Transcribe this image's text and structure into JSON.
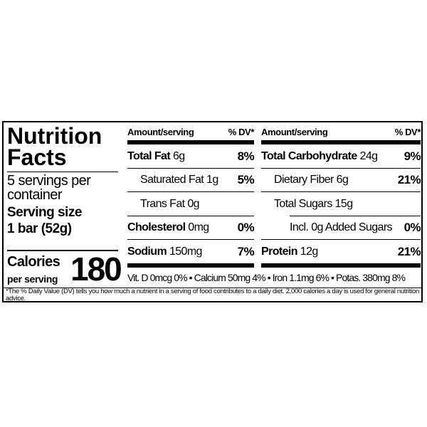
{
  "title_line1": "Nutrition",
  "title_line2": "Facts",
  "servings_line1": "5 servings per",
  "servings_line2": "container",
  "serving_size_label": "Serving size",
  "serving_size_value": "1 bar (52g)",
  "calories_label": "Calories",
  "calories_sub": "per serving",
  "calories_value": "180",
  "left_table": {
    "header_amount": "Amount/serving",
    "header_dv": "% DV*",
    "rows": [
      {
        "name": "Total Fat",
        "amount": "6g",
        "dv": "8%",
        "bold": true,
        "indent": 0
      },
      {
        "name": "Saturated Fat",
        "amount": "1g",
        "dv": "5%",
        "bold": false,
        "indent": 1
      },
      {
        "name": "Trans Fat",
        "amount": "0g",
        "dv": "",
        "bold": false,
        "indent": 1
      },
      {
        "name": "Cholesterol",
        "amount": "0mg",
        "dv": "0%",
        "bold": true,
        "indent": 0
      },
      {
        "name": "Sodium",
        "amount": "150mg",
        "dv": "7%",
        "bold": true,
        "indent": 0
      }
    ]
  },
  "right_table": {
    "header_amount": "Amount/serving",
    "header_dv": "% DV*",
    "rows": [
      {
        "name": "Total Carbohydrate",
        "amount": "24g",
        "dv": "9%",
        "bold": true,
        "indent": 0
      },
      {
        "name": "Dietary Fiber",
        "amount": "6g",
        "dv": "21%",
        "bold": false,
        "indent": 1
      },
      {
        "name": "Total Sugars",
        "amount": "15g",
        "dv": "",
        "bold": false,
        "indent": 1
      },
      {
        "name": "Incl. 0g Added Sugars",
        "amount": "",
        "dv": "0%",
        "bold": false,
        "indent": 2
      },
      {
        "name": "Protein",
        "amount": "12g",
        "dv": "21%",
        "bold": true,
        "indent": 0
      }
    ]
  },
  "vitamins": "Vit. D 0mcg 0% • Calcium 50mg 4% • Iron 1.1mg  6% • Potas. 380mg 8%",
  "footnote": "*The % Daily Value (DV) tells you how much a nutrient in a serving of food contributes to a daily diet. 2,000 calories a day is used for general nutrition advice."
}
